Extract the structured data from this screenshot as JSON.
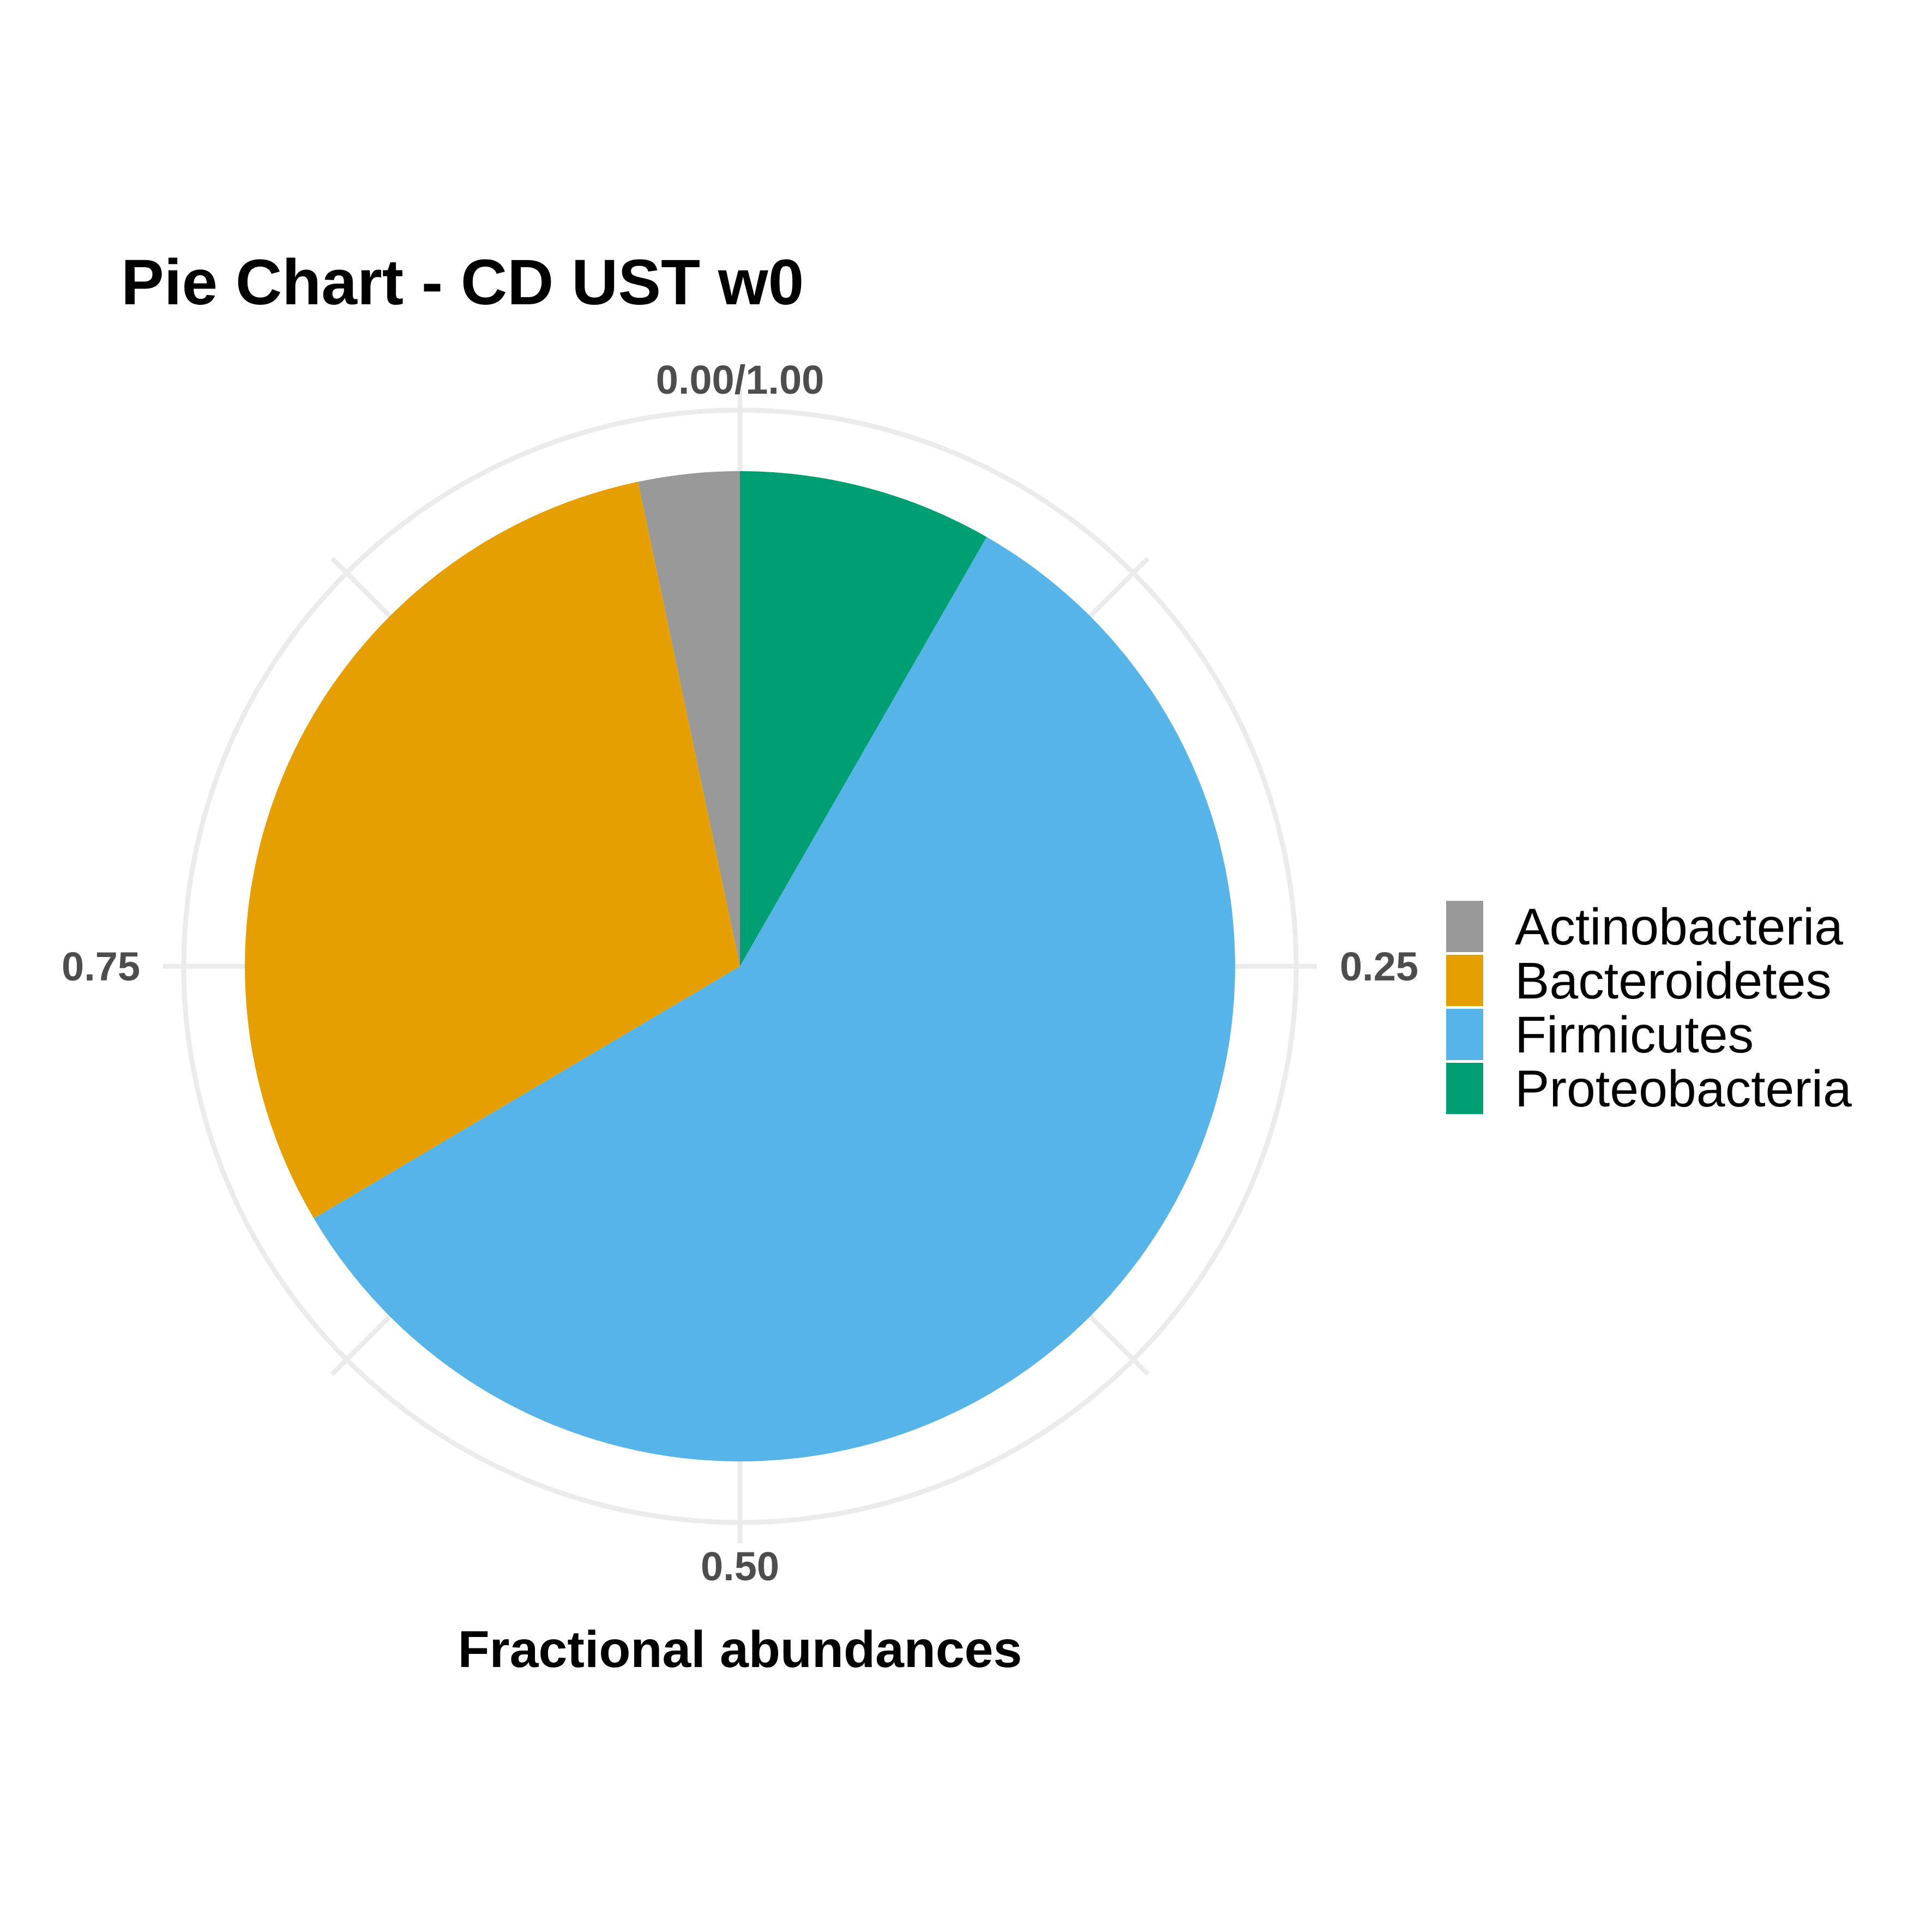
{
  "chart_data": {
    "type": "pie",
    "title": "Pie Chart - CD UST w0",
    "xlabel": "Fractional abundances",
    "ylabel": "",
    "categories": [
      "Actinobacteria",
      "Bacteroidetes",
      "Firmicutes",
      "Proteobacteria"
    ],
    "values": [
      0.033,
      0.302,
      0.582,
      0.083
    ],
    "colors": [
      "#999999",
      "#E69F00",
      "#56B4E9",
      "#009E73"
    ],
    "stack_order": [
      "Proteobacteria",
      "Firmicutes",
      "Bacteroidetes",
      "Actinobacteria"
    ],
    "direction": "clockwise",
    "start": "top",
    "tick_labels": [
      "0.00/1.00",
      "0.25",
      "0.50",
      "0.75"
    ],
    "tick_values": [
      0,
      0.25,
      0.5,
      0.75
    ],
    "minor_grid_values": [
      0.125,
      0.375,
      0.625,
      0.875
    ],
    "grid": true,
    "legend": {
      "placement": "right",
      "entries": [
        "Actinobacteria",
        "Bacteroidetes",
        "Firmicutes",
        "Proteobacteria"
      ]
    }
  }
}
